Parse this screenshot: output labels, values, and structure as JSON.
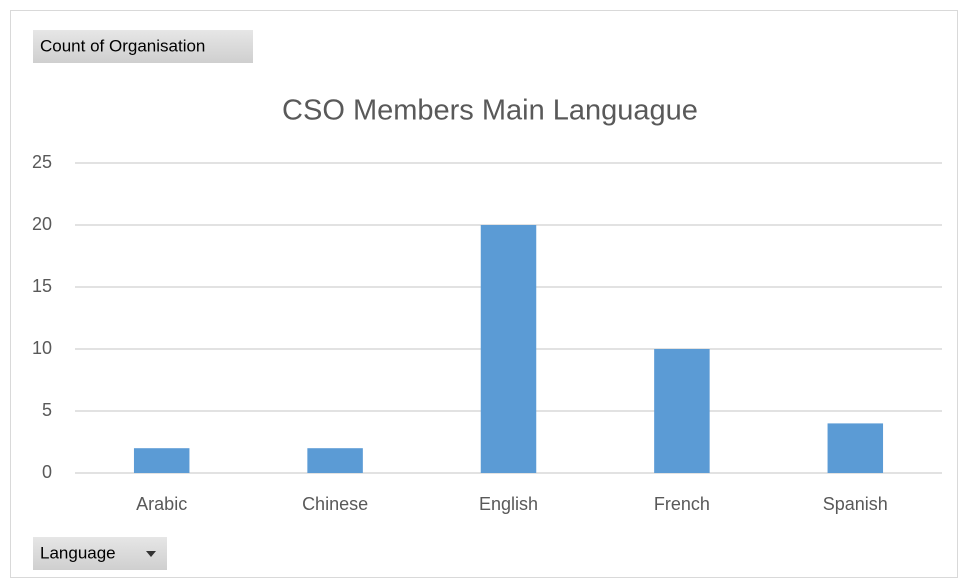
{
  "chart_data": {
    "type": "bar",
    "title": "CSO Members Main Languague",
    "value_field": "Count of Organisation",
    "axis_field": "Language",
    "categories": [
      "Arabic",
      "Chinese",
      "English",
      "French",
      "Spanish"
    ],
    "values": [
      2,
      2,
      20,
      10,
      4
    ],
    "color": "#5b9bd5",
    "ylim": [
      0,
      25
    ],
    "yticks": [
      0,
      5,
      10,
      15,
      20,
      25
    ],
    "grid": true
  }
}
